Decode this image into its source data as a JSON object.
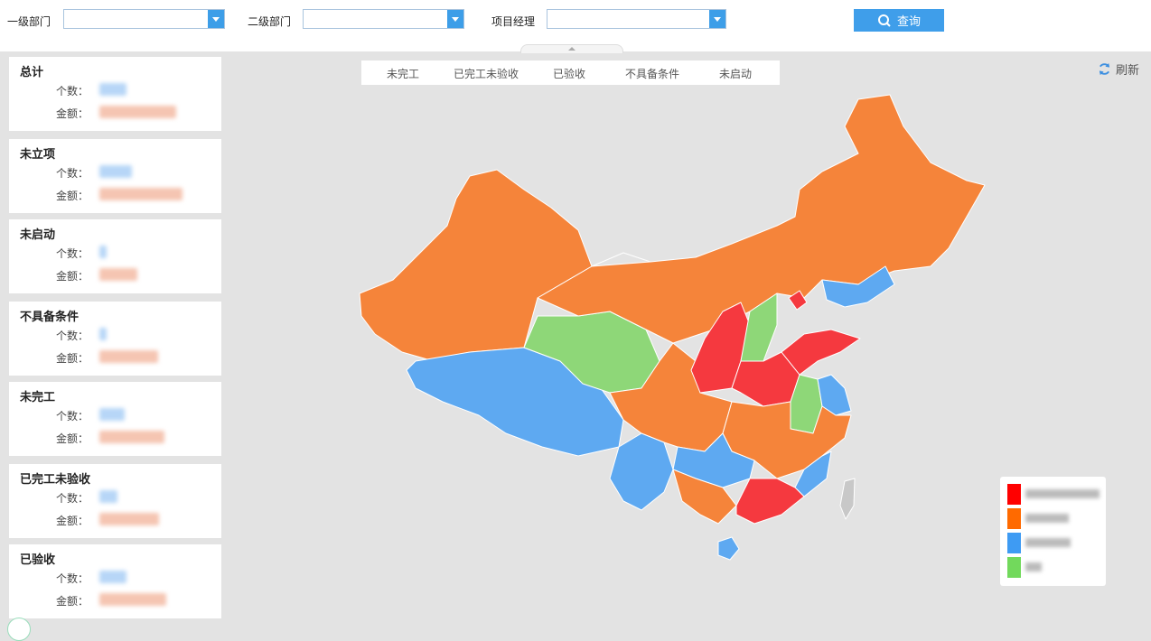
{
  "filters": {
    "dept1_label": "一级部门",
    "dept2_label": "二级部门",
    "manager_label": "项目经理",
    "query_label": "查询"
  },
  "stats": [
    {
      "title": "总计",
      "count_label": "个数：",
      "amount_label": "金额："
    },
    {
      "title": "未立项",
      "count_label": "个数：",
      "amount_label": "金额："
    },
    {
      "title": "未启动",
      "count_label": "个数：",
      "amount_label": "金额："
    },
    {
      "title": "不具备条件",
      "count_label": "个数：",
      "amount_label": "金额："
    },
    {
      "title": "未完工",
      "count_label": "个数：",
      "amount_label": "金额："
    },
    {
      "title": "已完工未验收",
      "count_label": "个数：",
      "amount_label": "金额："
    },
    {
      "title": "已验收",
      "count_label": "个数：",
      "amount_label": "金额："
    }
  ],
  "status_tabs": [
    "未完工",
    "已完工未验收",
    "已验收",
    "不具备条件",
    "未启动"
  ],
  "refresh_label": "刷新",
  "legend": {
    "colors": [
      "#ff0000",
      "#ff6a00",
      "#3e9bf3",
      "#72d95c"
    ]
  },
  "map_colors": {
    "orange": "#f5843a",
    "red": "#f5393f",
    "blue": "#5ea9f1",
    "green": "#8ed778",
    "taiwan": "#c8c8c8"
  }
}
